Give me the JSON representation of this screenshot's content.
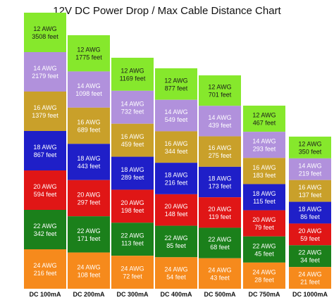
{
  "title": "12V DC Power Drop / Max Cable Distance Chart",
  "columns": [
    {
      "label": "DC 100mA",
      "cells": [
        {
          "gauge": "12 AWG",
          "distance": "3508 feet"
        },
        {
          "gauge": "14 AWG",
          "distance": "2179 feet"
        },
        {
          "gauge": "16 AWG",
          "distance": "1379 feet"
        },
        {
          "gauge": "18 AWG",
          "distance": "867 feet"
        },
        {
          "gauge": "20 AWG",
          "distance": "594 feet"
        },
        {
          "gauge": "22 AWG",
          "distance": "342 feet"
        },
        {
          "gauge": "24 AWG",
          "distance": "216 feet"
        }
      ]
    },
    {
      "label": "DC 200mA",
      "cells": [
        {
          "gauge": "12 AWG",
          "distance": "1775 feet"
        },
        {
          "gauge": "14 AWG",
          "distance": "1098 feet"
        },
        {
          "gauge": "16 AWG",
          "distance": "689 feet"
        },
        {
          "gauge": "18 AWG",
          "distance": "443 feet"
        },
        {
          "gauge": "20 AWG",
          "distance": "297 feet"
        },
        {
          "gauge": "22 AWG",
          "distance": "171 feet"
        },
        {
          "gauge": "24 AWG",
          "distance": "108 feet"
        }
      ]
    },
    {
      "label": "DC 300mA",
      "cells": [
        {
          "gauge": "12 AWG",
          "distance": "1169 feet"
        },
        {
          "gauge": "14 AWG",
          "distance": "732 feet"
        },
        {
          "gauge": "16 AWG",
          "distance": "459 feet"
        },
        {
          "gauge": "18 AWG",
          "distance": "289 feet"
        },
        {
          "gauge": "20 AWG",
          "distance": "198 feet"
        },
        {
          "gauge": "22 AWG",
          "distance": "113 feet"
        },
        {
          "gauge": "24 AWG",
          "distance": "72 feet"
        }
      ]
    },
    {
      "label": "DC 400mA",
      "cells": [
        {
          "gauge": "12 AWG",
          "distance": "877 feet"
        },
        {
          "gauge": "14 AWG",
          "distance": "549 feet"
        },
        {
          "gauge": "16 AWG",
          "distance": "344 feet"
        },
        {
          "gauge": "18 AWG",
          "distance": "216 feet"
        },
        {
          "gauge": "20 AWG",
          "distance": "148 feet"
        },
        {
          "gauge": "22 AWG",
          "distance": "85 feet"
        },
        {
          "gauge": "24 AWG",
          "distance": "54 feet"
        }
      ]
    },
    {
      "label": "DC 500mA",
      "cells": [
        {
          "gauge": "12 AWG",
          "distance": "701 feet"
        },
        {
          "gauge": "14 AWG",
          "distance": "439 feet"
        },
        {
          "gauge": "16 AWG",
          "distance": "275 feet"
        },
        {
          "gauge": "18 AWG",
          "distance": "173 feet"
        },
        {
          "gauge": "20 AWG",
          "distance": "119 feet"
        },
        {
          "gauge": "22 AWG",
          "distance": "68 feet"
        },
        {
          "gauge": "24 AWG",
          "distance": "43 feet"
        }
      ]
    },
    {
      "label": "DC 750mA",
      "cells": [
        {
          "gauge": "12 AWG",
          "distance": "467 feet"
        },
        {
          "gauge": "14 AWG",
          "distance": "293 feet"
        },
        {
          "gauge": "16 AWG",
          "distance": "183 feet"
        },
        {
          "gauge": "18 AWG",
          "distance": "115 feet"
        },
        {
          "gauge": "20 AWG",
          "distance": "79 feet"
        },
        {
          "gauge": "22 AWG",
          "distance": "45 feet"
        },
        {
          "gauge": "24 AWG",
          "distance": "28 feet"
        }
      ]
    },
    {
      "label": "DC 1000mA",
      "cells": [
        {
          "gauge": "12 AWG",
          "distance": "350 feet"
        },
        {
          "gauge": "14 AWG",
          "distance": "219 feet"
        },
        {
          "gauge": "16 AWG",
          "distance": "137 feet"
        },
        {
          "gauge": "18 AWG",
          "distance": "86 feet"
        },
        {
          "gauge": "20 AWG",
          "distance": "59 feet"
        },
        {
          "gauge": "22 AWG",
          "distance": "34 feet"
        },
        {
          "gauge": "24 AWG",
          "distance": "21 feet"
        }
      ]
    }
  ]
}
